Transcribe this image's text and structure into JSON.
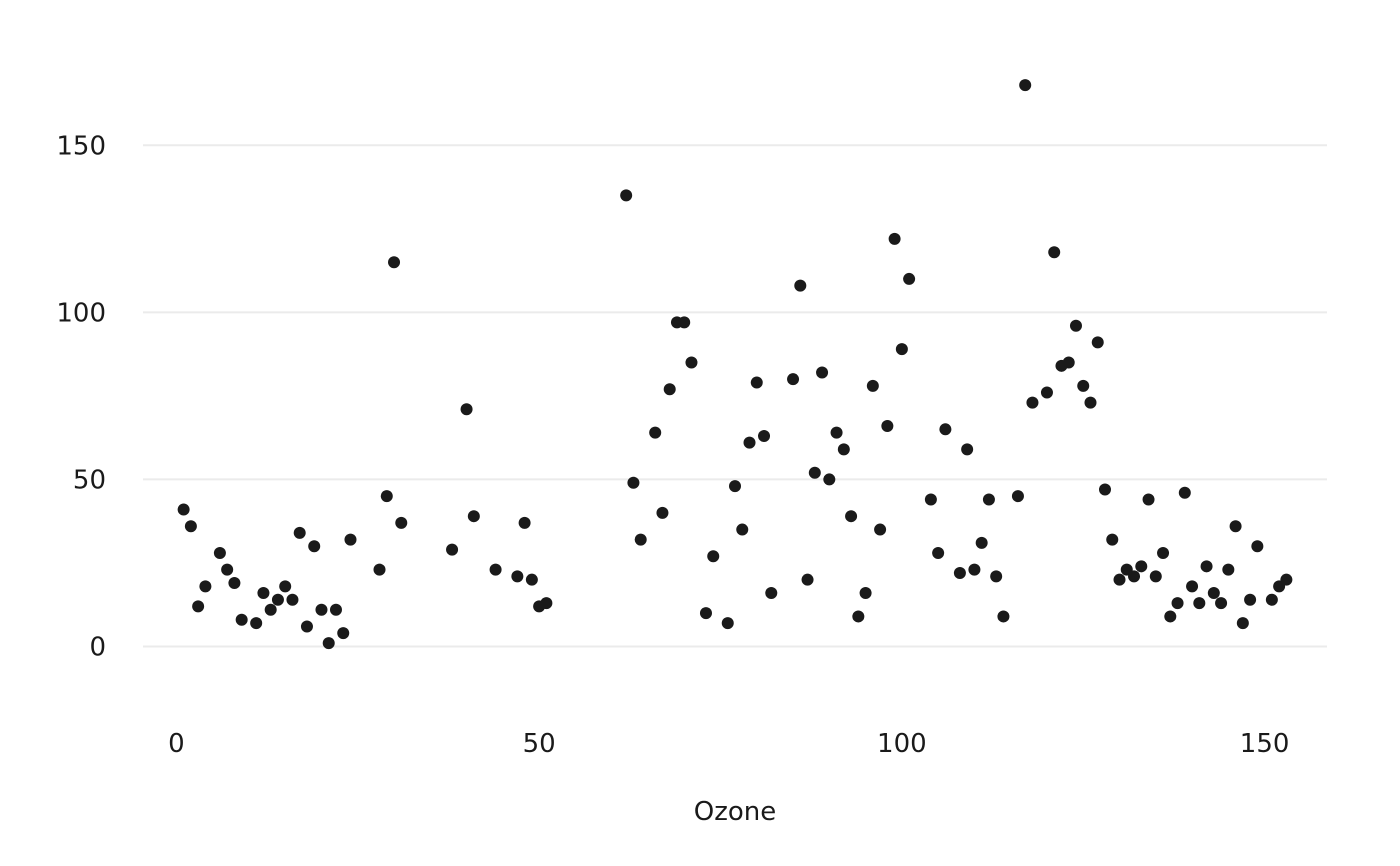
{
  "chart_data": {
    "type": "scatter",
    "title": "",
    "xlabel": "Ozone",
    "ylabel": "",
    "xlim": [
      -4.6,
      158.6
    ],
    "ylim": [
      -17.5,
      181.5
    ],
    "xticks": [
      0,
      50,
      100,
      150
    ],
    "yticks": [
      0,
      50,
      100,
      150
    ],
    "xtick_labels": [
      "0",
      "50",
      "100",
      "150"
    ],
    "ytick_labels": [
      "0",
      "50",
      "100",
      "150"
    ],
    "grid": "horizontal major",
    "point_color": "#1a1a1a",
    "x": [
      1,
      2,
      3,
      4,
      6,
      7,
      8,
      9,
      11,
      12,
      13,
      14,
      15,
      16,
      17,
      18,
      19,
      20,
      21,
      22,
      23,
      24,
      28,
      29,
      30,
      31,
      38,
      40,
      41,
      44,
      47,
      48,
      49,
      50,
      51,
      62,
      63,
      64,
      66,
      67,
      68,
      69,
      70,
      71,
      73,
      74,
      76,
      77,
      78,
      79,
      80,
      81,
      82,
      85,
      86,
      87,
      88,
      89,
      90,
      91,
      92,
      93,
      94,
      95,
      96,
      97,
      98,
      99,
      100,
      101,
      104,
      105,
      106,
      108,
      109,
      110,
      111,
      112,
      113,
      114,
      116,
      117,
      118,
      120,
      121,
      122,
      123,
      124,
      125,
      126,
      127,
      128,
      129,
      130,
      131,
      132,
      133,
      134,
      135,
      136,
      137,
      138,
      139,
      140,
      141,
      142,
      143,
      144,
      145,
      146,
      147,
      148,
      149,
      151,
      152,
      153
    ],
    "y": [
      41,
      36,
      12,
      18,
      28,
      23,
      19,
      8,
      7,
      16,
      11,
      14,
      18,
      14,
      34,
      6,
      30,
      11,
      1,
      11,
      4,
      32,
      23,
      45,
      115,
      37,
      29,
      71,
      39,
      23,
      21,
      37,
      20,
      12,
      13,
      135,
      49,
      32,
      64,
      40,
      77,
      97,
      97,
      85,
      10,
      27,
      7,
      48,
      35,
      61,
      79,
      63,
      16,
      80,
      108,
      20,
      52,
      82,
      50,
      64,
      59,
      39,
      9,
      16,
      78,
      35,
      66,
      122,
      89,
      110,
      44,
      28,
      65,
      22,
      59,
      23,
      31,
      44,
      21,
      9,
      45,
      168,
      73,
      76,
      118,
      84,
      85,
      96,
      78,
      73,
      91,
      47,
      32,
      20,
      23,
      21,
      24,
      44,
      21,
      28,
      9,
      13,
      46,
      18,
      13,
      24,
      16,
      13,
      23,
      36,
      7,
      14,
      30,
      14,
      18,
      20
    ]
  }
}
